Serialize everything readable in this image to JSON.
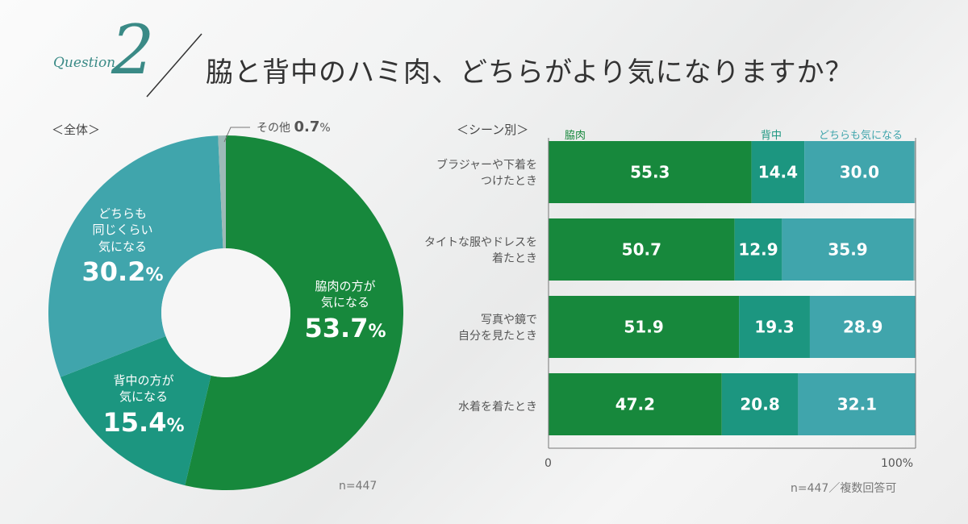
{
  "header": {
    "question_word": "Question",
    "question_number": "2",
    "title": "脇と背中のハミ肉、どちらがより気になりますか？"
  },
  "colors": {
    "waki": "#17883c",
    "senaka": "#1c9680",
    "dochira": "#40a5ac",
    "other": "#9dbab8"
  },
  "overall": {
    "label": "＜全体＞",
    "n": "n=447",
    "slices": [
      {
        "label_lines": [
          "脇肉の方が",
          "気になる"
        ],
        "pct_number": "53.7",
        "pct_unit": "%",
        "value": 53.7
      },
      {
        "label_lines": [
          "背中の方が",
          "気になる"
        ],
        "pct_number": "15.4",
        "pct_unit": "%",
        "value": 15.4
      },
      {
        "label_lines": [
          "どちらも",
          "同じくらい",
          "気になる"
        ],
        "pct_number": "30.2",
        "pct_unit": "%",
        "value": 30.2
      },
      {
        "label_prefix": "その他",
        "pct_number": "0.7",
        "pct_unit": "%",
        "value": 0.7
      }
    ]
  },
  "chart_data": [
    {
      "type": "pie",
      "categories": [
        "脇肉の方が気になる",
        "背中の方が気になる",
        "どちらも同じくらい気になる",
        "その他"
      ],
      "values": [
        53.7,
        15.4,
        30.2,
        0.7
      ],
      "title": "＜全体＞",
      "n": "n=447"
    },
    {
      "type": "bar",
      "orientation": "horizontal",
      "stacked": true,
      "title": "＜シーン別＞",
      "categories": [
        "ブラジャーや下着をつけたとき",
        "タイトな服やドレスを着たとき",
        "写真や鏡で自分を見たとき",
        "水着を着たとき"
      ],
      "series": [
        {
          "name": "脇肉",
          "values": [
            55.3,
            50.7,
            51.9,
            47.2
          ]
        },
        {
          "name": "背中",
          "values": [
            14.4,
            12.9,
            19.3,
            20.8
          ]
        },
        {
          "name": "どちらも気になる",
          "values": [
            30.0,
            35.9,
            28.9,
            32.1
          ]
        }
      ],
      "xlim": [
        0,
        100
      ],
      "xticks": [
        "0",
        "100%"
      ],
      "legend_position": "top",
      "n": "n=447／複数回答可"
    }
  ],
  "scene": {
    "label": "＜シーン別＞",
    "category_lines": [
      [
        "ブラジャーや下着を",
        "つけたとき"
      ],
      [
        "タイトな服やドレスを",
        "着たとき"
      ],
      [
        "写真や鏡で",
        "自分を見たとき"
      ],
      [
        "水着を着たとき"
      ]
    ],
    "legend": [
      "脇肉",
      "背中",
      "どちらも気になる"
    ],
    "axis_start": "0",
    "axis_end": "100%",
    "n": "n=447／複数回答可"
  }
}
